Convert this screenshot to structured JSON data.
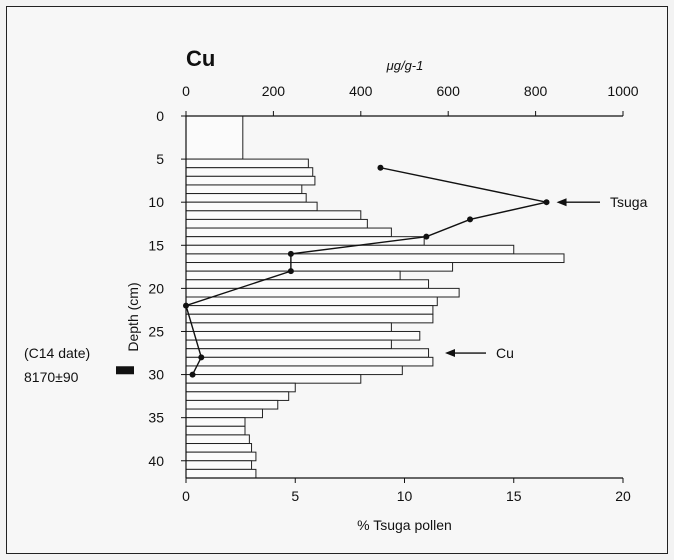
{
  "chart_data": {
    "type": "bar",
    "title": "Cu",
    "top_axis": {
      "label": "μg/g-1",
      "range": [
        0,
        1000
      ],
      "ticks": [
        0,
        200,
        400,
        600,
        800,
        1000
      ]
    },
    "bottom_axis": {
      "label": "% Tsuga pollen",
      "range": [
        0,
        20
      ],
      "ticks": [
        0,
        5,
        10,
        15,
        20
      ]
    },
    "y_axis": {
      "label": "Depth (cm)",
      "range": [
        0,
        42
      ],
      "ticks": [
        0,
        5,
        10,
        15,
        20,
        25,
        30,
        35,
        40
      ],
      "inverted": true
    },
    "annotations": {
      "tsuga_label": "Tsuga",
      "cu_label": "Cu",
      "c14_line1": "(C14 date)",
      "c14_line2": "8170±90",
      "c14_depth": 29.5
    },
    "series": [
      {
        "name": "Cu",
        "kind": "bars",
        "units": "μg/g-1",
        "bars": [
          {
            "top": 0,
            "bottom": 5,
            "value": 130
          },
          {
            "top": 5,
            "bottom": 6,
            "value": 280
          },
          {
            "top": 6,
            "bottom": 7,
            "value": 290
          },
          {
            "top": 7,
            "bottom": 8,
            "value": 295
          },
          {
            "top": 8,
            "bottom": 9,
            "value": 265
          },
          {
            "top": 9,
            "bottom": 10,
            "value": 275
          },
          {
            "top": 10,
            "bottom": 11,
            "value": 300
          },
          {
            "top": 11,
            "bottom": 12,
            "value": 400
          },
          {
            "top": 12,
            "bottom": 13,
            "value": 415
          },
          {
            "top": 13,
            "bottom": 14,
            "value": 470
          },
          {
            "top": 14,
            "bottom": 15,
            "value": 545
          },
          {
            "top": 15,
            "bottom": 16,
            "value": 750
          },
          {
            "top": 16,
            "bottom": 17,
            "value": 865
          },
          {
            "top": 17,
            "bottom": 18,
            "value": 610
          },
          {
            "top": 18,
            "bottom": 19,
            "value": 490
          },
          {
            "top": 19,
            "bottom": 20,
            "value": 555
          },
          {
            "top": 20,
            "bottom": 21,
            "value": 625
          },
          {
            "top": 21,
            "bottom": 22,
            "value": 575
          },
          {
            "top": 22,
            "bottom": 23,
            "value": 565
          },
          {
            "top": 23,
            "bottom": 24,
            "value": 565
          },
          {
            "top": 24,
            "bottom": 25,
            "value": 470
          },
          {
            "top": 25,
            "bottom": 26,
            "value": 535
          },
          {
            "top": 26,
            "bottom": 27,
            "value": 470
          },
          {
            "top": 27,
            "bottom": 28,
            "value": 555
          },
          {
            "top": 28,
            "bottom": 29,
            "value": 565
          },
          {
            "top": 29,
            "bottom": 30,
            "value": 495
          },
          {
            "top": 30,
            "bottom": 31,
            "value": 400
          },
          {
            "top": 31,
            "bottom": 32,
            "value": 250
          },
          {
            "top": 32,
            "bottom": 33,
            "value": 235
          },
          {
            "top": 33,
            "bottom": 34,
            "value": 210
          },
          {
            "top": 34,
            "bottom": 35,
            "value": 175
          },
          {
            "top": 35,
            "bottom": 36,
            "value": 135
          },
          {
            "top": 36,
            "bottom": 37,
            "value": 135
          },
          {
            "top": 37,
            "bottom": 38,
            "value": 145
          },
          {
            "top": 38,
            "bottom": 39,
            "value": 150
          },
          {
            "top": 39,
            "bottom": 40,
            "value": 160
          },
          {
            "top": 40,
            "bottom": 41,
            "value": 150
          },
          {
            "top": 41,
            "bottom": 42,
            "value": 160
          }
        ]
      },
      {
        "name": "Tsuga",
        "kind": "line",
        "units": "% Tsuga pollen",
        "points": [
          {
            "depth": 6,
            "value": 8.9
          },
          {
            "depth": 10,
            "value": 16.5
          },
          {
            "depth": 12,
            "value": 13.0
          },
          {
            "depth": 14,
            "value": 11.0
          },
          {
            "depth": 16,
            "value": 4.8
          },
          {
            "depth": 18,
            "value": 4.8
          },
          {
            "depth": 22,
            "value": 0.0
          },
          {
            "depth": 28,
            "value": 0.7
          },
          {
            "depth": 30,
            "value": 0.3
          }
        ]
      }
    ]
  }
}
